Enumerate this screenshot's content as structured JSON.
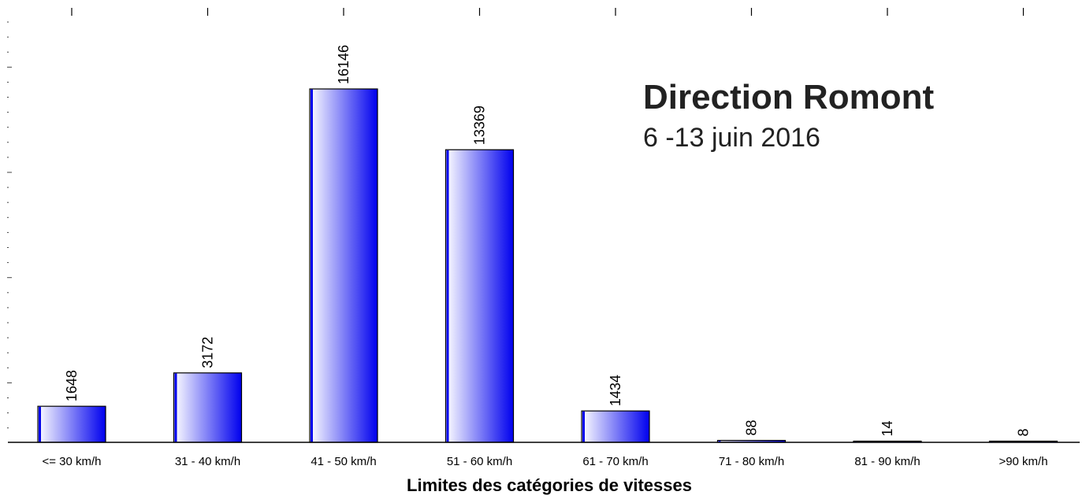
{
  "chart_data": {
    "type": "bar",
    "title": "Direction Romont",
    "subtitle": "6 -13 juin 2016",
    "xlabel": "Limites des catégories de vitesses",
    "ylabel": "",
    "categories": [
      "<=  30  km/h",
      "31 -  40  km/h",
      "41 -  50  km/h",
      "51 -  60  km/h",
      "61 -  70  km/h",
      "71 -  80  km/h",
      "81 - 90  km/h",
      ">90  km/h"
    ],
    "values": [
      1648,
      3172,
      16146,
      13369,
      1434,
      88,
      14,
      8
    ],
    "ylim": [
      0,
      20000
    ],
    "grid": false,
    "legend": "none",
    "colors": {
      "bar_dark": "#0000ee",
      "bar_light": "#ffffff",
      "outline": "#000000"
    }
  }
}
